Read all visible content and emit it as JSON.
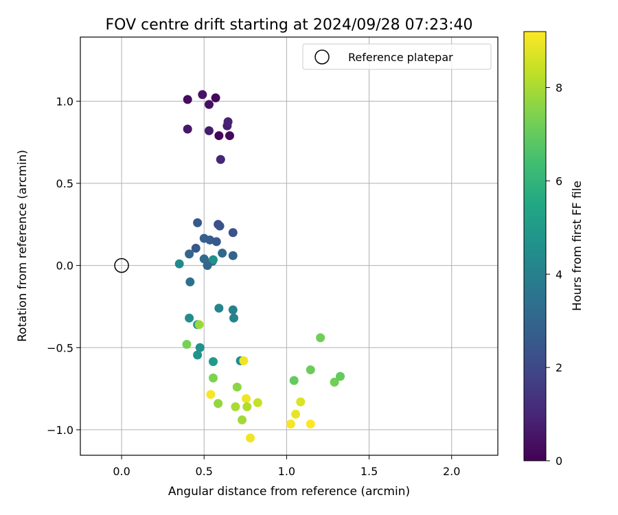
{
  "chart_data": {
    "type": "scatter",
    "title": "FOV centre drift starting at 2024/09/28 07:23:40",
    "xlabel": "Angular distance from reference (arcmin)",
    "ylabel": "Rotation from reference (arcmin)",
    "xlim": [
      -0.25,
      2.28
    ],
    "ylim": [
      -1.155,
      1.39
    ],
    "xticks": [
      0.0,
      0.5,
      1.0,
      1.5,
      2.0
    ],
    "xtick_labels": [
      "0.0",
      "0.5",
      "1.0",
      "1.5",
      "2.0"
    ],
    "yticks": [
      -1.0,
      -0.5,
      0.0,
      0.5,
      1.0
    ],
    "ytick_labels": [
      "−1.0",
      "−0.5",
      "0.0",
      "0.5",
      "1.0"
    ],
    "grid": true,
    "legend": {
      "placement": "top-right",
      "entries": [
        "Reference platepar"
      ]
    },
    "reference_point": {
      "x": 0.0,
      "y": 0.0,
      "label": "Reference platepar"
    },
    "colorbar": {
      "label": "Hours from first FF file",
      "range": [
        0,
        9.2
      ],
      "ticks": [
        0,
        2,
        4,
        6,
        8
      ],
      "tick_labels": [
        "0",
        "2",
        "4",
        "6",
        "8"
      ],
      "colormap": "viridis"
    },
    "points": [
      {
        "x": 0.4,
        "y": 1.01,
        "hours": 0.3
      },
      {
        "x": 0.49,
        "y": 1.04,
        "hours": 0.5
      },
      {
        "x": 0.53,
        "y": 0.98,
        "hours": 0.4
      },
      {
        "x": 0.57,
        "y": 1.02,
        "hours": 0.2
      },
      {
        "x": 0.4,
        "y": 0.83,
        "hours": 0.6
      },
      {
        "x": 0.53,
        "y": 0.82,
        "hours": 0.7
      },
      {
        "x": 0.59,
        "y": 0.79,
        "hours": 0.1
      },
      {
        "x": 0.64,
        "y": 0.85,
        "hours": 0.8
      },
      {
        "x": 0.645,
        "y": 0.875,
        "hours": 0.9
      },
      {
        "x": 0.655,
        "y": 0.79,
        "hours": 0.2
      },
      {
        "x": 0.6,
        "y": 0.645,
        "hours": 1.0
      },
      {
        "x": 0.46,
        "y": 0.26,
        "hours": 2.6
      },
      {
        "x": 0.585,
        "y": 0.25,
        "hours": 2.2
      },
      {
        "x": 0.595,
        "y": 0.24,
        "hours": 2.4
      },
      {
        "x": 0.675,
        "y": 0.2,
        "hours": 2.3
      },
      {
        "x": 0.45,
        "y": 0.105,
        "hours": 2.5
      },
      {
        "x": 0.5,
        "y": 0.165,
        "hours": 2.8
      },
      {
        "x": 0.535,
        "y": 0.155,
        "hours": 2.7
      },
      {
        "x": 0.575,
        "y": 0.145,
        "hours": 2.6
      },
      {
        "x": 0.41,
        "y": 0.07,
        "hours": 3.0
      },
      {
        "x": 0.61,
        "y": 0.075,
        "hours": 3.1
      },
      {
        "x": 0.675,
        "y": 0.06,
        "hours": 2.9
      },
      {
        "x": 0.5,
        "y": 0.04,
        "hours": 3.2
      },
      {
        "x": 0.55,
        "y": 0.025,
        "hours": 3.3
      },
      {
        "x": 0.555,
        "y": 0.035,
        "hours": 4.6
      },
      {
        "x": 0.52,
        "y": 0.0,
        "hours": 3.0
      },
      {
        "x": 0.35,
        "y": 0.01,
        "hours": 4.3
      },
      {
        "x": 0.415,
        "y": -0.1,
        "hours": 3.4
      },
      {
        "x": 0.59,
        "y": -0.26,
        "hours": 4.2
      },
      {
        "x": 0.675,
        "y": -0.27,
        "hours": 4.0
      },
      {
        "x": 0.68,
        "y": -0.32,
        "hours": 4.1
      },
      {
        "x": 0.41,
        "y": -0.32,
        "hours": 4.4
      },
      {
        "x": 0.46,
        "y": -0.36,
        "hours": 4.5
      },
      {
        "x": 0.47,
        "y": -0.36,
        "hours": 7.8
      },
      {
        "x": 0.395,
        "y": -0.48,
        "hours": 7.3
      },
      {
        "x": 0.475,
        "y": -0.5,
        "hours": 4.6
      },
      {
        "x": 0.46,
        "y": -0.545,
        "hours": 4.7
      },
      {
        "x": 0.555,
        "y": -0.585,
        "hours": 5.0
      },
      {
        "x": 0.72,
        "y": -0.58,
        "hours": 4.4
      },
      {
        "x": 0.74,
        "y": -0.58,
        "hours": 9.0
      },
      {
        "x": 0.555,
        "y": -0.685,
        "hours": 7.4
      },
      {
        "x": 0.7,
        "y": -0.74,
        "hours": 7.6
      },
      {
        "x": 0.54,
        "y": -0.785,
        "hours": 9.1
      },
      {
        "x": 0.585,
        "y": -0.84,
        "hours": 7.7
      },
      {
        "x": 0.69,
        "y": -0.86,
        "hours": 8.0
      },
      {
        "x": 0.755,
        "y": -0.81,
        "hours": 9.0
      },
      {
        "x": 0.76,
        "y": -0.86,
        "hours": 8.1
      },
      {
        "x": 0.825,
        "y": -0.835,
        "hours": 8.4
      },
      {
        "x": 0.73,
        "y": -0.94,
        "hours": 7.9
      },
      {
        "x": 0.78,
        "y": -1.05,
        "hours": 9.0
      },
      {
        "x": 1.045,
        "y": -0.7,
        "hours": 7.0
      },
      {
        "x": 1.205,
        "y": -0.44,
        "hours": 7.2
      },
      {
        "x": 1.145,
        "y": -0.635,
        "hours": 7.1
      },
      {
        "x": 1.29,
        "y": -0.71,
        "hours": 7.2
      },
      {
        "x": 1.325,
        "y": -0.675,
        "hours": 7.0
      },
      {
        "x": 1.085,
        "y": -0.83,
        "hours": 8.7
      },
      {
        "x": 1.055,
        "y": -0.905,
        "hours": 8.9
      },
      {
        "x": 1.025,
        "y": -0.965,
        "hours": 9.1
      },
      {
        "x": 1.145,
        "y": -0.965,
        "hours": 9.2
      }
    ]
  }
}
